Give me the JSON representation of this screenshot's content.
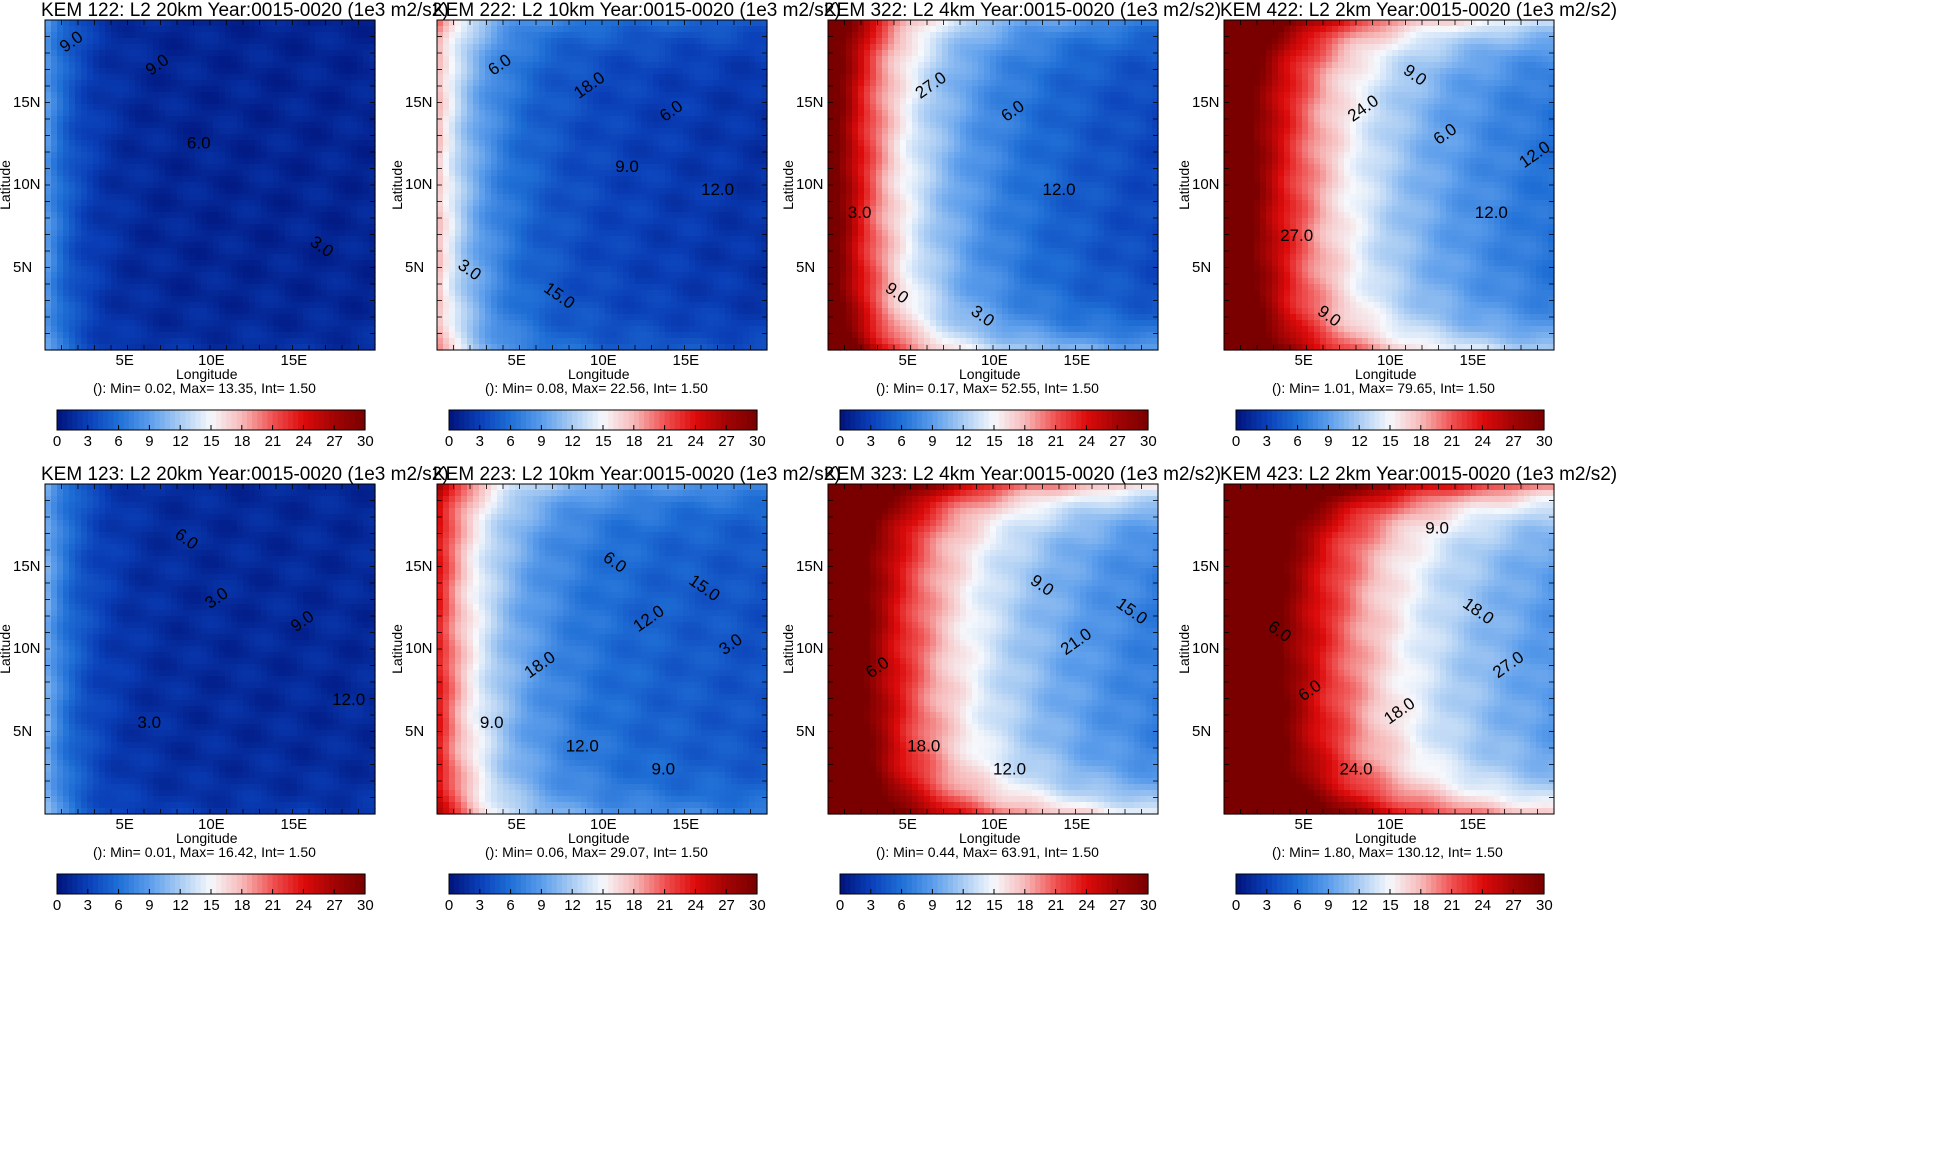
{
  "colorbar": {
    "ticks": [
      "0",
      "3",
      "6",
      "9",
      "12",
      "15",
      "18",
      "21",
      "24",
      "27",
      "30"
    ],
    "vmin": 0,
    "vmax": 30,
    "stops": [
      "#00137a",
      "#0a3fb8",
      "#1f6fd6",
      "#5a9ceb",
      "#a9ccf3",
      "#f6f8fc",
      "#f7b9b9",
      "#f05252",
      "#dd0b0b",
      "#a20404",
      "#7a0000"
    ]
  },
  "axes": {
    "xlabel": "Longitude",
    "ylabel": "Latitude",
    "xticks": [
      "5E",
      "10E",
      "15E"
    ],
    "yticks": [
      "15N",
      "10N",
      "5N"
    ]
  },
  "chart_data": [
    {
      "type": "heatmap",
      "title": "KEM 122: L2 20km Year:0015-0020 (1e3 m2/s2)",
      "stats": "(): Min= 0.02, Max= 13.35, Int= 1.50",
      "min": 0.02,
      "max": 13.35,
      "interval": 1.5,
      "pattern": {
        "base": 1.2,
        "west": 8,
        "wd": 1.8,
        "north": 0,
        "south": 0.8,
        "east": 0
      },
      "contour_labels": [
        "9.0",
        "6.0",
        "3.0",
        "9.0"
      ]
    },
    {
      "type": "heatmap",
      "title": "KEM 222: L2 10km Year:0015-0020 (1e3 m2/s2)",
      "stats": "(): Min= 0.08, Max= 22.56, Int= 1.50",
      "min": 0.08,
      "max": 22.56,
      "interval": 1.5,
      "pattern": {
        "base": 4,
        "west": 14,
        "wd": 2.8,
        "north": 3,
        "south": 2,
        "east": -2
      },
      "contour_labels": [
        "6.0",
        "9.0",
        "3.0",
        "18.0",
        "12.0",
        "15.0",
        "6.0"
      ]
    },
    {
      "type": "heatmap",
      "title": "KEM 322: L2 4km Year:0015-0020 (1e3 m2/s2)",
      "stats": "(): Min= 0.17, Max= 52.55, Int= 1.50",
      "min": 0.17,
      "max": 52.55,
      "interval": 1.5,
      "pattern": {
        "base": 6,
        "west": 28,
        "wd": 4.5,
        "north": 4,
        "south": 6,
        "east": -3
      },
      "contour_labels": [
        "27.0",
        "12.0",
        "9.0",
        "6.0",
        "3.0",
        "3.0"
      ]
    },
    {
      "type": "heatmap",
      "title": "KEM 422: L2 2km Year:0015-0020 (1e3 m2/s2)",
      "stats": "(): Min= 1.01, Max= 79.65, Int= 1.50",
      "min": 1.01,
      "max": 79.65,
      "interval": 1.5,
      "pattern": {
        "base": 8,
        "west": 30,
        "wd": 6,
        "north": 8,
        "south": 6,
        "east": -3
      },
      "contour_labels": [
        "24.0",
        "12.0",
        "9.0",
        "6.0",
        "27.0",
        "9.0",
        "12.0"
      ]
    },
    {
      "type": "heatmap",
      "title": "KEM 123: L2 20km Year:0015-0020 (1e3 m2/s2)",
      "stats": "(): Min= 0.01, Max= 16.42, Int= 1.50",
      "min": 0.01,
      "max": 16.42,
      "interval": 1.5,
      "pattern": {
        "base": 1.5,
        "west": 9,
        "wd": 2,
        "north": 0,
        "south": 1,
        "east": 0
      },
      "contour_labels": [
        "3.0",
        "12.0",
        "6.0",
        "9.0",
        "3.0"
      ]
    },
    {
      "type": "heatmap",
      "title": "KEM 223: L2 10km Year:0015-0020 (1e3 m2/s2)",
      "stats": "(): Min= 0.06, Max= 29.07, Int= 1.50",
      "min": 0.06,
      "max": 29.07,
      "interval": 1.5,
      "pattern": {
        "base": 6,
        "west": 18,
        "wd": 3.5,
        "north": 4,
        "south": 3,
        "east": -2
      },
      "contour_labels": [
        "12.0",
        "9.0",
        "6.0",
        "3.0",
        "12.0",
        "15.0",
        "18.0",
        "9.0"
      ]
    },
    {
      "type": "heatmap",
      "title": "KEM 323: L2 4km Year:0015-0020 (1e3 m2/s2)",
      "stats": "(): Min= 0.44, Max= 63.91, Int= 1.50",
      "min": 0.44,
      "max": 63.91,
      "interval": 1.5,
      "pattern": {
        "base": 11,
        "west": 30,
        "wd": 5.5,
        "north": 10,
        "south": 8,
        "east": -5
      },
      "contour_labels": [
        "21.0",
        "18.0",
        "9.0",
        "6.0",
        "12.0",
        "15.0"
      ]
    },
    {
      "type": "heatmap",
      "title": "KEM 423: L2 2km Year:0015-0020 (1e3 m2/s2)",
      "stats": "(): Min= 1.80, Max= 130.12, Int= 1.50",
      "min": 1.8,
      "max": 130.12,
      "interval": 1.5,
      "pattern": {
        "base": 11,
        "west": 34,
        "wd": 6.5,
        "north": 12,
        "south": 9,
        "east": -4
      },
      "contour_labels": [
        "27.0",
        "24.0",
        "18.0",
        "6.0",
        "9.0",
        "6.0",
        "18.0"
      ]
    }
  ]
}
